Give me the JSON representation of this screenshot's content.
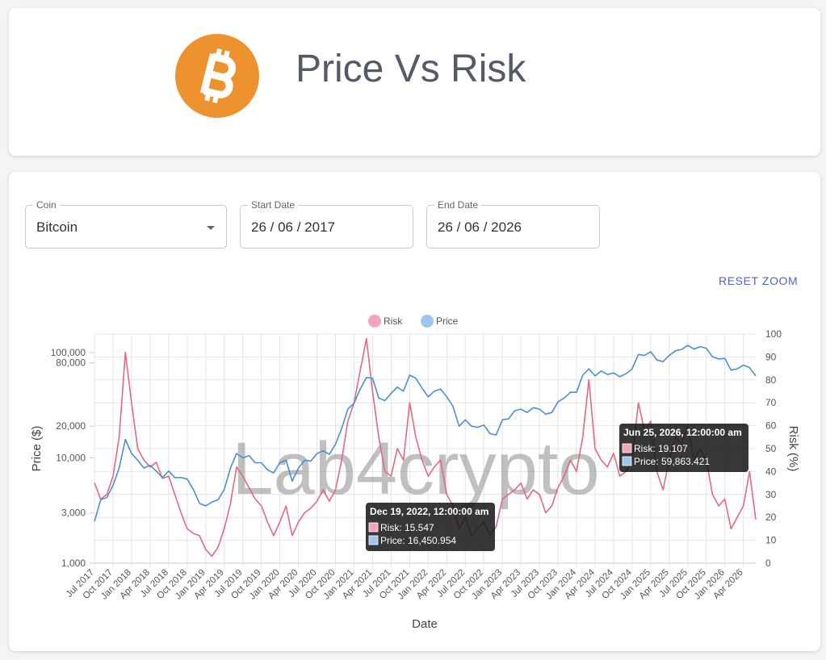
{
  "header": {
    "title": "Price Vs Risk"
  },
  "form": {
    "coin": {
      "label": "Coin",
      "value": "Bitcoin"
    },
    "start_date": {
      "label": "Start Date",
      "value": "26 / 06 / 2017"
    },
    "end_date": {
      "label": "End Date",
      "value": "26 / 06 / 2026"
    },
    "reset_button": "RESET ZOOM"
  },
  "chart_data": {
    "type": "line",
    "watermark": "Lab4crypto",
    "x_label": "Date",
    "y_label": "Price ($)",
    "y2_label": "Risk (%)",
    "log_y": true,
    "grid": true,
    "legend": "top",
    "categories": [
      "Jul 2017",
      null,
      null,
      "Oct 2017",
      null,
      null,
      "Jan 2018",
      null,
      null,
      "Apr 2018",
      null,
      null,
      "Jul 2018",
      null,
      null,
      "Oct 2018",
      null,
      null,
      "Jan 2019",
      null,
      null,
      "Apr 2019",
      null,
      null,
      "Jul 2019",
      null,
      null,
      "Oct 2019",
      null,
      null,
      "Jan 2020",
      null,
      null,
      "Apr 2020",
      null,
      null,
      "Jul 2020",
      null,
      null,
      "Oct 2020",
      null,
      null,
      "Jan 2021",
      null,
      null,
      "Apr 2021",
      null,
      null,
      "Jul 2021",
      null,
      null,
      "Oct 2021",
      null,
      null,
      "Jan 2022",
      null,
      null,
      "Apr 2022",
      null,
      null,
      "Jul 2022",
      null,
      null,
      "Oct 2022",
      null,
      null,
      "Jan 2023",
      null,
      null,
      "Apr 2023",
      null,
      null,
      "Jul 2023",
      null,
      null,
      "Oct 2023",
      null,
      null,
      "Jan 2024",
      null,
      null,
      "Apr 2024",
      null,
      null,
      "Jul 2024",
      null,
      null,
      "Oct 2024",
      null,
      null,
      "Jan 2025",
      null,
      null,
      "Apr 2025",
      null,
      null,
      "Jul 2025",
      null,
      null,
      "Oct 2025",
      null,
      null,
      "Jan 2026",
      null,
      null,
      "Apr 2026",
      null,
      null
    ],
    "series": [
      {
        "name": "Risk",
        "color": "#e06a80",
        "legend_color": "#f4a6b8",
        "axis": "y2",
        "values": [
          35,
          28,
          30,
          38,
          55,
          92,
          70,
          50,
          45,
          42,
          44,
          37,
          38,
          30,
          22,
          15,
          13,
          12,
          6,
          3,
          7,
          15,
          26,
          42,
          38,
          33,
          28,
          25,
          18,
          12,
          18,
          25,
          12,
          18,
          22,
          24,
          27,
          32,
          27,
          32,
          45,
          62,
          70,
          84,
          98,
          75,
          55,
          40,
          38,
          50,
          45,
          70,
          55,
          45,
          38,
          42,
          45,
          30,
          25,
          15,
          20,
          12,
          15,
          18,
          12,
          16,
          28,
          30,
          32,
          35,
          28,
          32,
          30,
          22,
          25,
          33,
          38,
          45,
          40,
          55,
          80,
          50,
          45,
          42,
          48,
          38,
          40,
          45,
          70,
          58,
          62,
          40,
          32,
          45,
          55,
          52,
          60,
          45,
          50,
          45,
          30,
          25,
          28,
          15,
          20,
          25,
          40,
          19
        ]
      },
      {
        "name": "Price",
        "color": "#4a8fd6",
        "legend_color": "#9ec5eb",
        "axis": "y",
        "values": [
          2500,
          4000,
          4200,
          5500,
          8000,
          15000,
          11000,
          9500,
          8000,
          8500,
          7500,
          6500,
          7500,
          6500,
          6500,
          6300,
          5000,
          3700,
          3500,
          3800,
          4000,
          5000,
          8000,
          11000,
          10000,
          10500,
          9000,
          9000,
          7700,
          7200,
          9000,
          9500,
          6000,
          8000,
          9500,
          9300,
          11000,
          11700,
          10800,
          13500,
          19000,
          29000,
          33000,
          45000,
          58000,
          57000,
          37000,
          35000,
          41000,
          47000,
          43000,
          61000,
          57000,
          46000,
          38000,
          43000,
          45000,
          38000,
          31000,
          20000,
          23000,
          20000,
          19500,
          20500,
          17000,
          16500,
          23000,
          23500,
          28000,
          29000,
          27000,
          30000,
          29000,
          26000,
          27000,
          34000,
          37000,
          42000,
          42000,
          61000,
          70000,
          60000,
          67000,
          62000,
          64000,
          59000,
          63000,
          70000,
          96000,
          94000,
          102000,
          85000,
          82000,
          94000,
          104000,
          107000,
          117000,
          108000,
          114000,
          110000,
          91000,
          87000,
          88000,
          68000,
          70000,
          76000,
          72000,
          60000
        ]
      }
    ],
    "ylim": [
      1000,
      150000
    ],
    "yticks": [
      {
        "value": 1000,
        "label": "1,000"
      },
      {
        "value": 3000,
        "label": "3,000"
      },
      {
        "value": 10000,
        "label": "10,000"
      },
      {
        "value": 20000,
        "label": "20,000"
      },
      {
        "value": 80000,
        "label": "80,000"
      },
      {
        "value": 100000,
        "label": "100,000"
      }
    ],
    "y2lim": [
      0,
      100
    ],
    "y2ticks": [
      0,
      10,
      20,
      30,
      40,
      50,
      60,
      70,
      80,
      90,
      100
    ],
    "tooltips": [
      {
        "title": "Dec 19, 2022, 12:00:00 am",
        "lines": [
          "Risk: 15.547",
          "Price: 16,450.954"
        ]
      },
      {
        "title": "Jun 25, 2026, 12:00:00 am",
        "lines": [
          "Risk: 19.107",
          "Price: 59,863.421"
        ]
      }
    ]
  }
}
